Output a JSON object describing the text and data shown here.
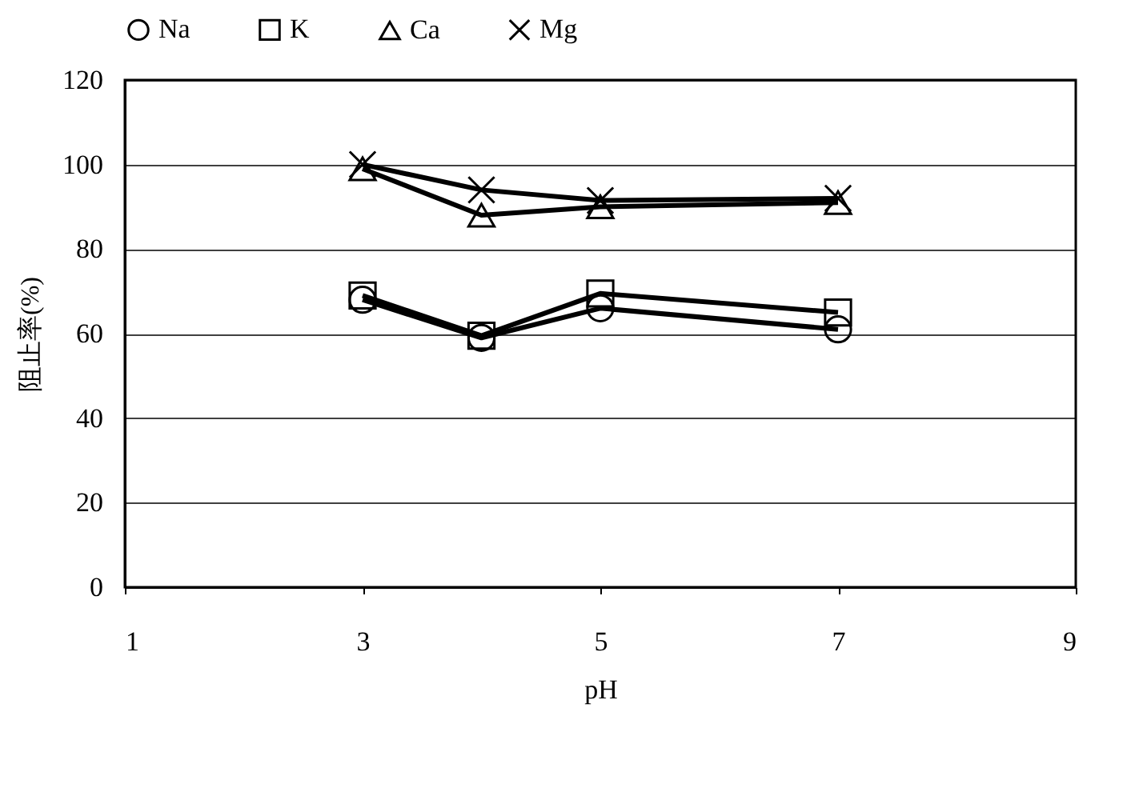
{
  "chart_data": {
    "type": "line",
    "xlabel": "pH",
    "ylabel": "阻止率(%)",
    "x": [
      3,
      4,
      5,
      7
    ],
    "series": [
      {
        "name": "Na",
        "color": "#000000",
        "marker": "circle",
        "values": [
          68,
          59,
          66,
          61
        ]
      },
      {
        "name": "K",
        "color": "#000000",
        "marker": "square",
        "values": [
          69,
          59.5,
          69.5,
          65
        ]
      },
      {
        "name": "Ca",
        "color": "#000000",
        "marker": "triangle",
        "values": [
          99,
          88,
          90,
          91
        ]
      },
      {
        "name": "Mg",
        "color": "#000000",
        "marker": "cross",
        "values": [
          100,
          94,
          91.5,
          92
        ]
      }
    ],
    "xlim": [
      1,
      9
    ],
    "xticks": [
      1,
      3,
      5,
      7,
      9
    ],
    "ylim": [
      0,
      120
    ],
    "yticks": [
      0,
      20,
      40,
      60,
      80,
      100,
      120
    ],
    "grid": "y",
    "legend": "top",
    "line_style": "solid"
  }
}
